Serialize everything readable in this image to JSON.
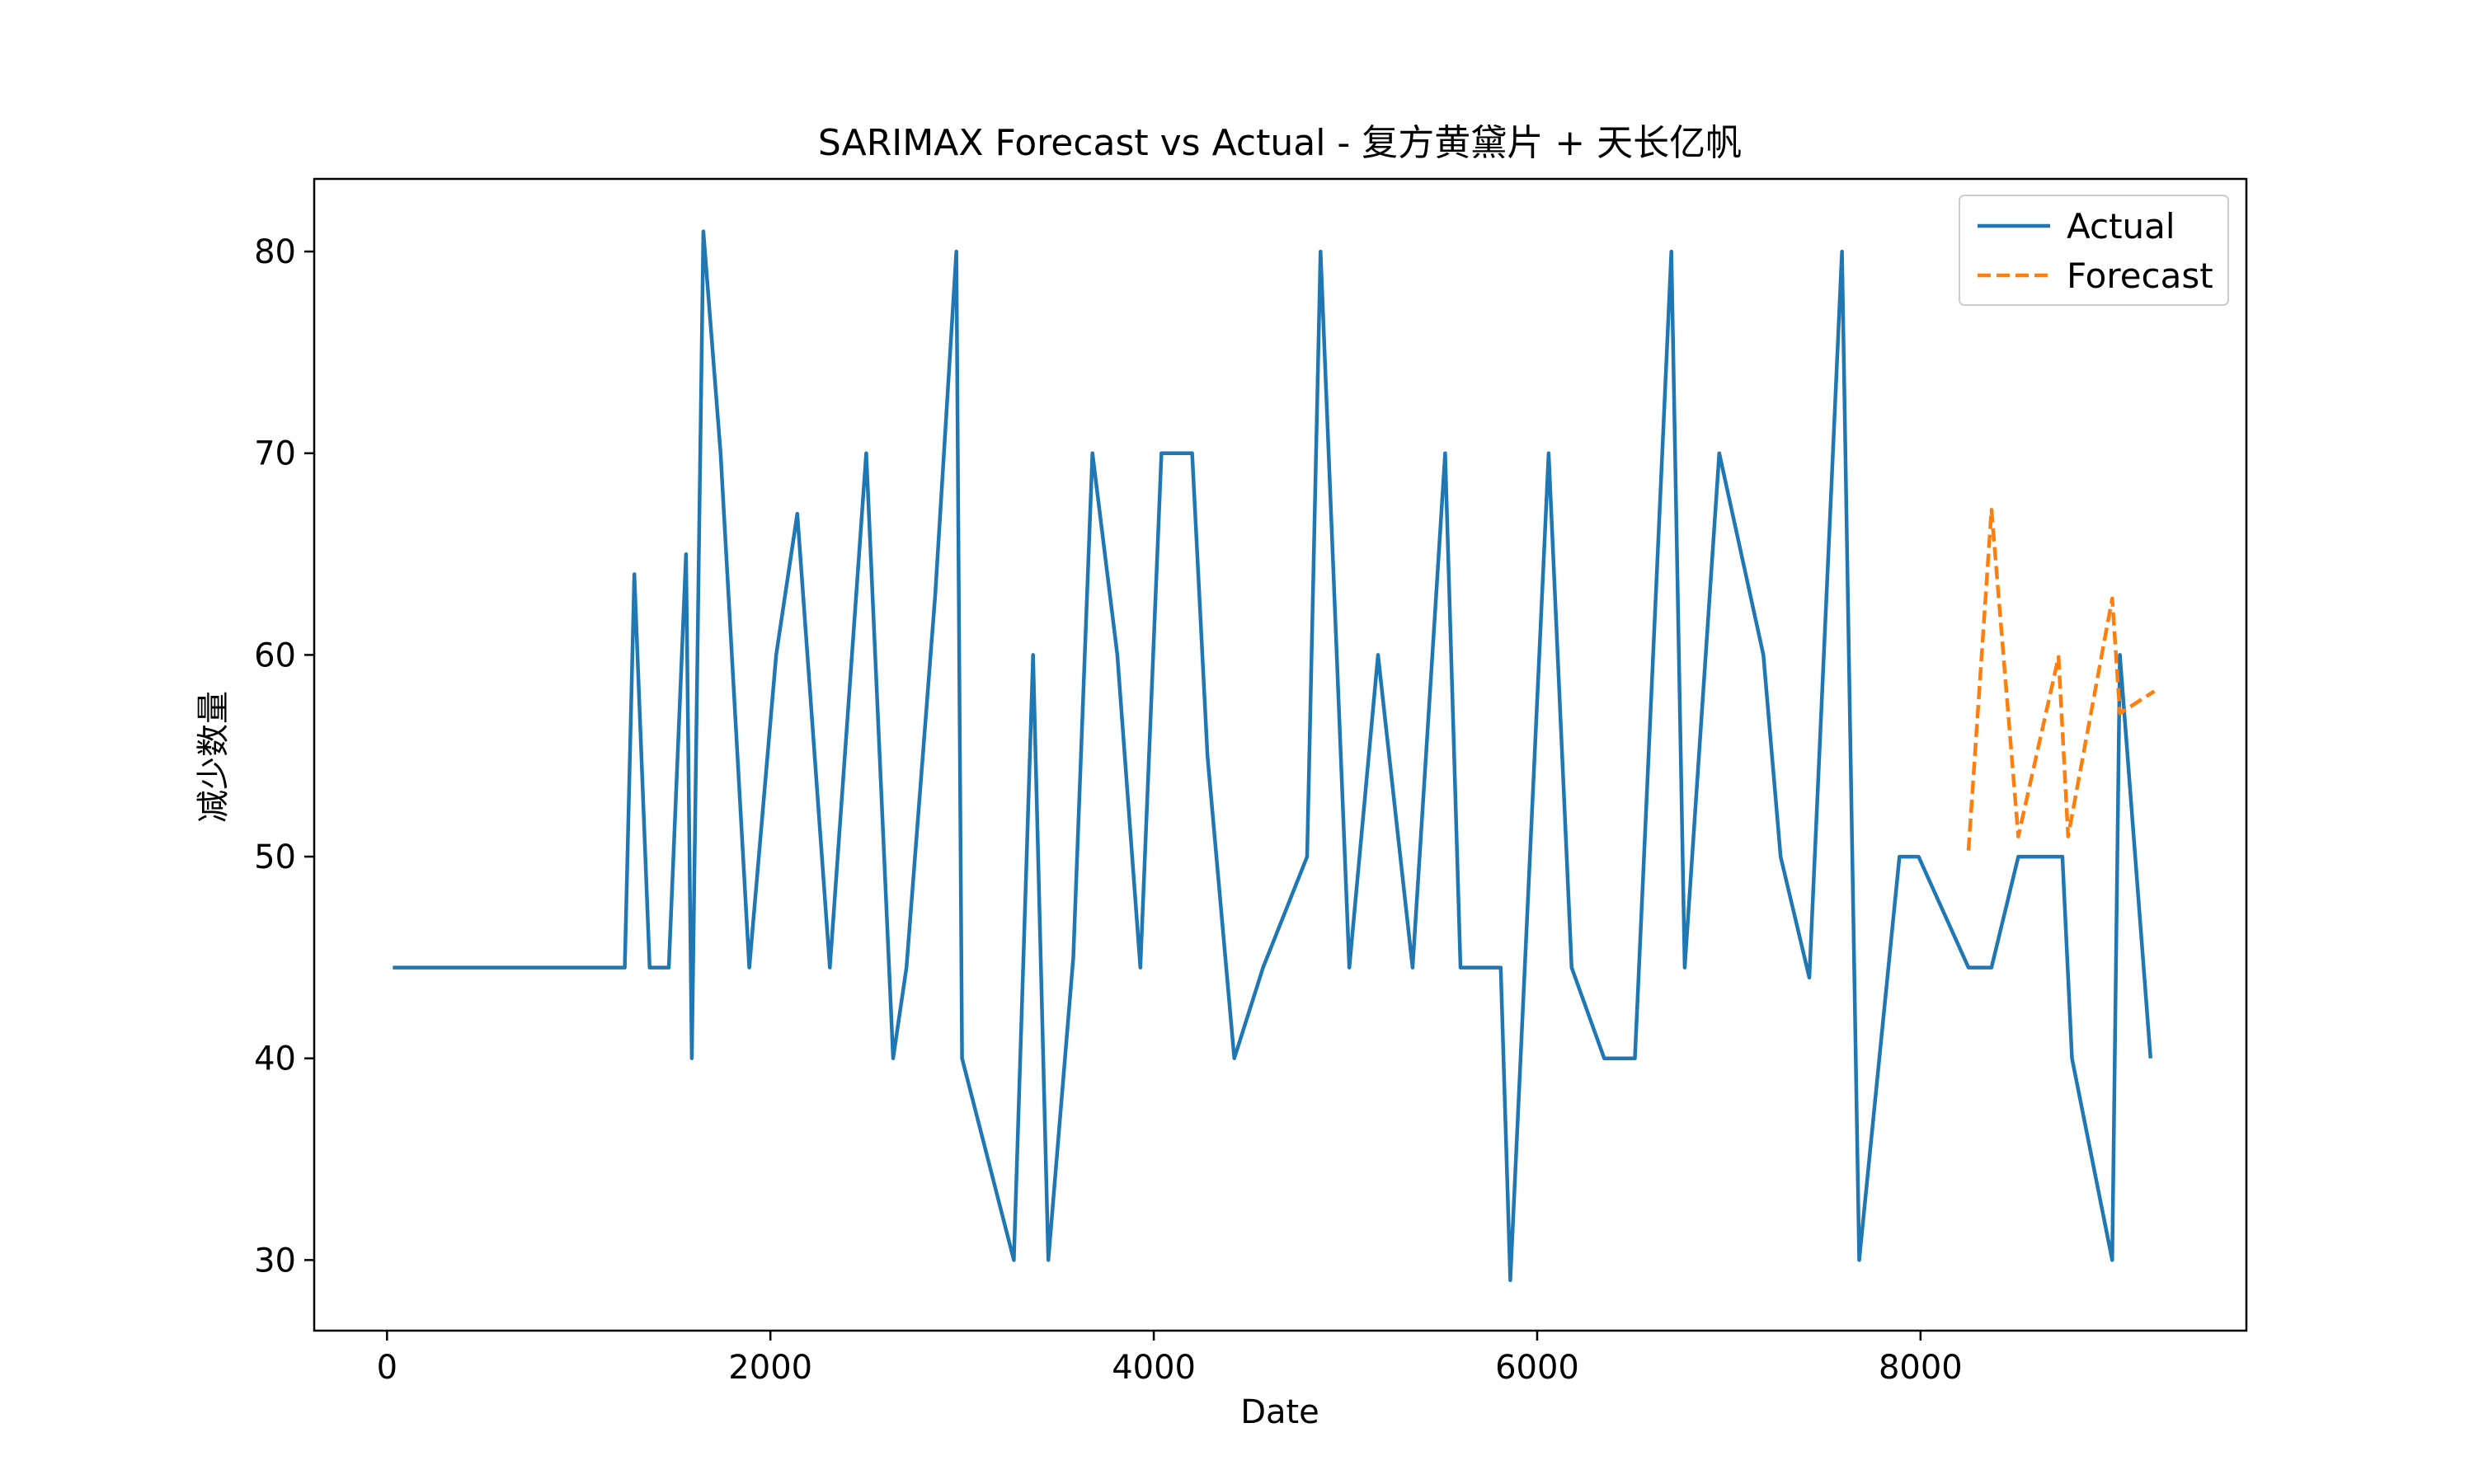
{
  "chart_data": {
    "type": "line",
    "title": "SARIMAX Forecast vs Actual - 复方黄黛片 + 天长亿帆",
    "xlabel": "Date",
    "ylabel": "减少数量",
    "xlim": [
      -380,
      9700
    ],
    "ylim": [
      26.5,
      83.6
    ],
    "xticks": [
      0,
      2000,
      4000,
      6000,
      8000
    ],
    "yticks": [
      30,
      40,
      50,
      60,
      70,
      80
    ],
    "legend_position": "top-right",
    "colors": {
      "Actual": "#1f77b4",
      "Forecast": "#ff7f0e"
    },
    "series": [
      {
        "name": "Actual",
        "style": "solid",
        "x": [
          30,
          1240,
          1290,
          1370,
          1470,
          1560,
          1590,
          1650,
          1740,
          1890,
          2030,
          2140,
          2310,
          2500,
          2640,
          2710,
          2860,
          2970,
          3000,
          3270,
          3370,
          3450,
          3580,
          3680,
          3810,
          3930,
          4040,
          4200,
          4280,
          4420,
          4570,
          4800,
          4870,
          5020,
          5170,
          5350,
          5520,
          5600,
          5700,
          5810,
          5860,
          6060,
          6180,
          6350,
          6510,
          6700,
          6770,
          6950,
          7180,
          7270,
          7420,
          7590,
          7680,
          7890,
          7990,
          8250,
          8370,
          8510,
          8740,
          8790,
          9000,
          9040,
          9200
        ],
        "y": [
          44.5,
          44.5,
          64,
          44.5,
          44.5,
          65,
          40,
          81,
          70,
          44.5,
          60,
          67,
          44.5,
          70,
          40,
          44.5,
          63,
          80,
          40,
          30,
          60,
          30,
          45,
          70,
          60,
          44.5,
          70,
          70,
          55,
          40,
          44.5,
          50,
          80,
          44.5,
          60,
          44.5,
          70,
          44.5,
          44.5,
          44.5,
          29,
          70,
          44.5,
          40,
          40,
          80,
          44.5,
          70,
          60,
          50,
          44,
          80,
          30,
          50,
          50,
          44.5,
          44.5,
          50,
          50,
          40,
          30,
          60,
          40
        ]
      },
      {
        "name": "Forecast",
        "style": "dashed",
        "x": [
          8250,
          8370,
          8510,
          8720,
          8770,
          9000,
          9040,
          9220
        ],
        "y": [
          50.3,
          67.2,
          51,
          59.9,
          51,
          62.8,
          57.1,
          58.2
        ]
      }
    ]
  }
}
